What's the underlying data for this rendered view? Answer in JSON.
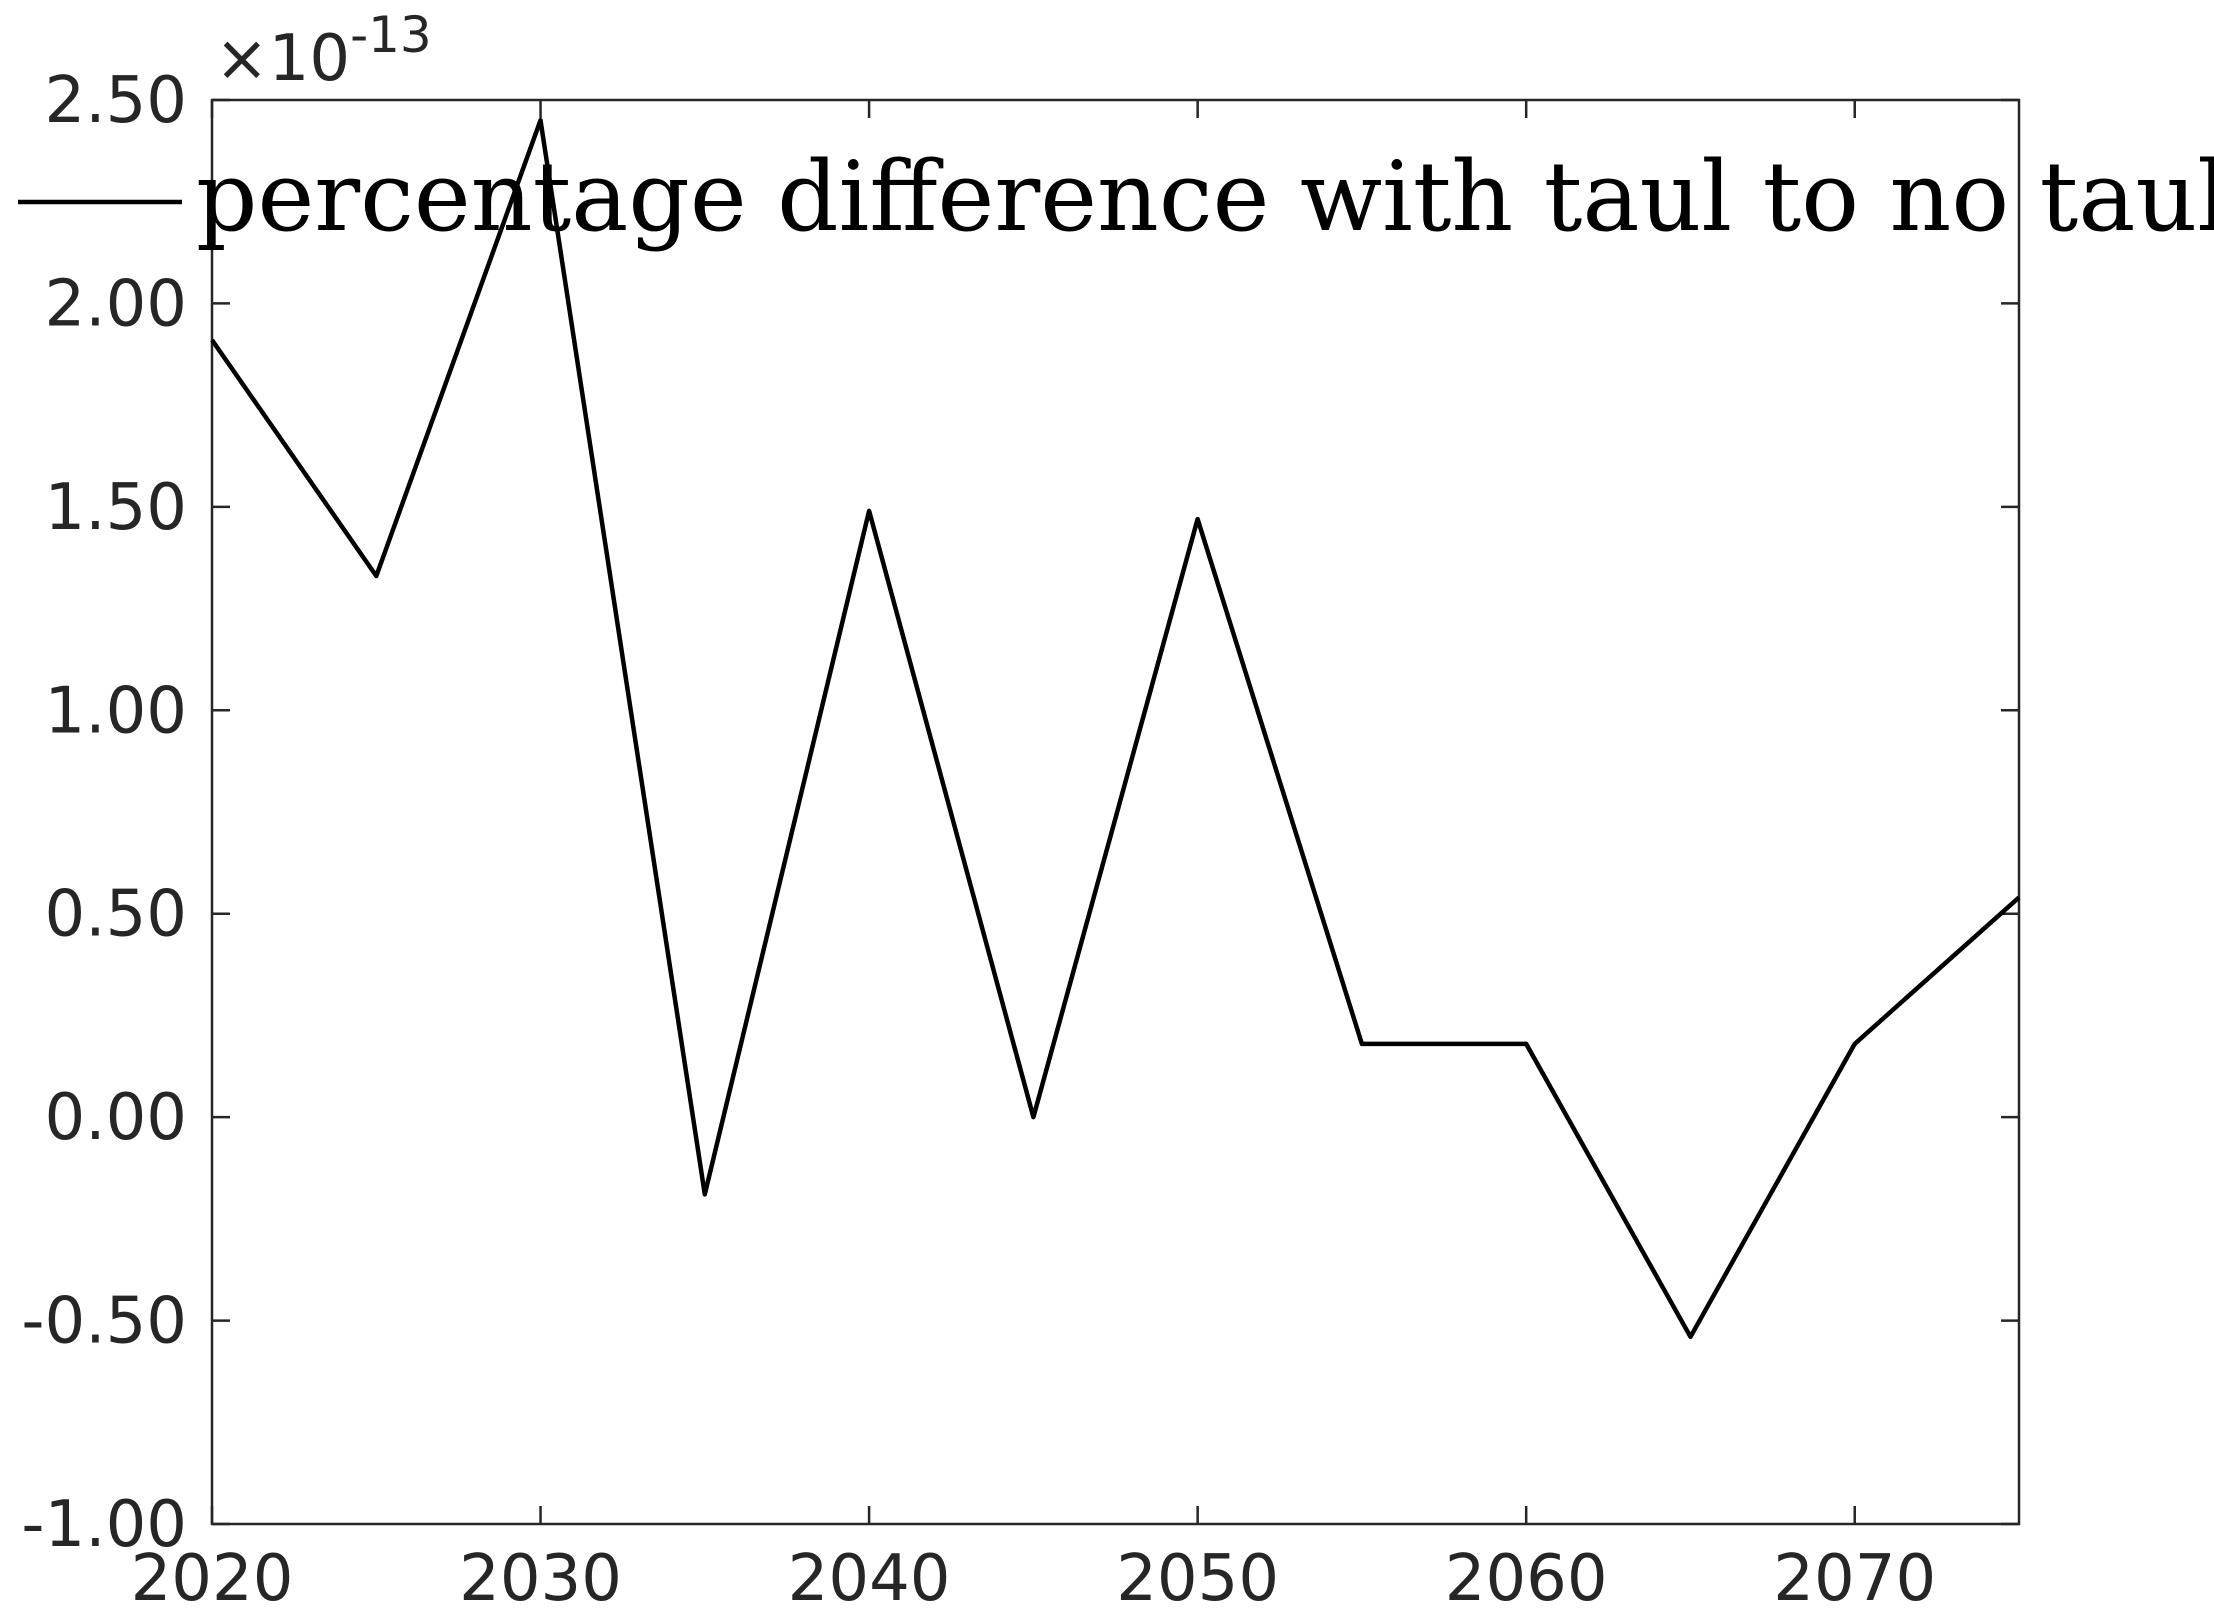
{
  "chart_data": {
    "type": "line",
    "title": "",
    "xlabel": "",
    "ylabel": "",
    "xlim": [
      2020,
      2075
    ],
    "ylim": [
      -1.0,
      2.5
    ],
    "y_exponent_label": {
      "base": "×10",
      "power": "-13"
    },
    "x_ticks": [
      2020,
      2030,
      2040,
      2050,
      2060,
      2070
    ],
    "x_tick_labels": [
      "2020",
      "2030",
      "2040",
      "2050",
      "2060",
      "2070"
    ],
    "y_ticks": [
      -1.0,
      -0.5,
      0.0,
      0.5,
      1.0,
      1.5,
      2.0,
      2.5
    ],
    "y_tick_labels": [
      "-1.00",
      "-0.50",
      "0.00",
      "0.50",
      "1.00",
      "1.50",
      "2.00",
      "2.50"
    ],
    "grid": false,
    "legend_position": "top",
    "series": [
      {
        "name": "percentage difference with taul to no taul",
        "color": "#000000",
        "x": [
          2020,
          2025,
          2030,
          2035,
          2040,
          2045,
          2050,
          2055,
          2060,
          2065,
          2070,
          2075
        ],
        "y": [
          1.91,
          1.33,
          2.45,
          -0.19,
          1.49,
          0.0,
          1.47,
          0.18,
          0.18,
          -0.54,
          0.18,
          0.54
        ]
      }
    ]
  }
}
